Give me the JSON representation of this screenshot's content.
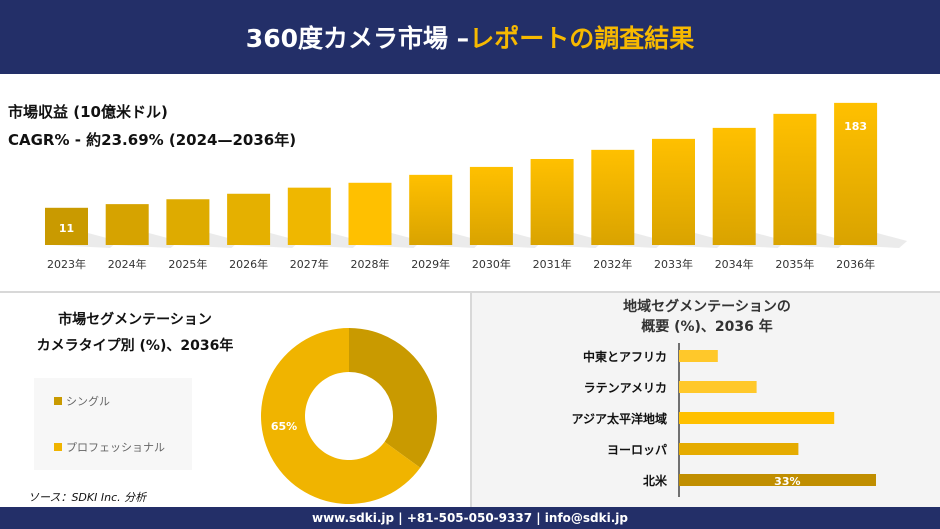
{
  "header": {
    "title_white": "360度カメラ市場 –",
    "title_yellow": "レポートの調査結果"
  },
  "colors": {
    "navy": "#232f68",
    "accent": "#f7b900"
  },
  "chart_data": [
    {
      "type": "bar",
      "title": "市場収益 (10億米ドル)",
      "subtitle": "CAGR% - 約23.69% (2024—2036年)",
      "categories": [
        "2023年",
        "2024年",
        "2025年",
        "2026年",
        "2027年",
        "2028年",
        "2029年",
        "2030年",
        "2031年",
        "2032年",
        "2033年",
        "2034年",
        "2035年",
        "2036年"
      ],
      "values": [
        11,
        17,
        25,
        34,
        44,
        52,
        65,
        78,
        91,
        106,
        124,
        142,
        165,
        183
      ],
      "data_labels": {
        "0": "11",
        "13": "183"
      },
      "ylim": [
        -50,
        200
      ],
      "grid": false
    },
    {
      "type": "pie",
      "title_line1": "市場セグメンテーション",
      "title_line2": "カメラタイプ別 (%)、2036年",
      "categories": [
        "シングル",
        "プロフェッショナル"
      ],
      "values": [
        35,
        65
      ],
      "colors": [
        "#c99a00",
        "#f0b400"
      ],
      "data_label": "65%",
      "legend": "left"
    },
    {
      "type": "bar",
      "orientation": "horizontal",
      "title_line1": "地域セグメンテーションの",
      "title_line2": "概要 (%)、2036 年",
      "categories": [
        "中東とアフリカ",
        "ラテンアメリカ",
        "アジア太平洋地域",
        "ヨーロッパ",
        "北米"
      ],
      "values": [
        6.5,
        13,
        26,
        20,
        33
      ],
      "colors": [
        "#ffc82a",
        "#ffc82a",
        "#ffc000",
        "#e5ab00",
        "#c08e00"
      ],
      "data_label": "33%",
      "xlim": [
        0,
        40
      ]
    }
  ],
  "source": "ソース：SDKI Inc. 分析",
  "footer": "www.sdki.jp | +81-505-050-9337 | info@sdki.jp"
}
